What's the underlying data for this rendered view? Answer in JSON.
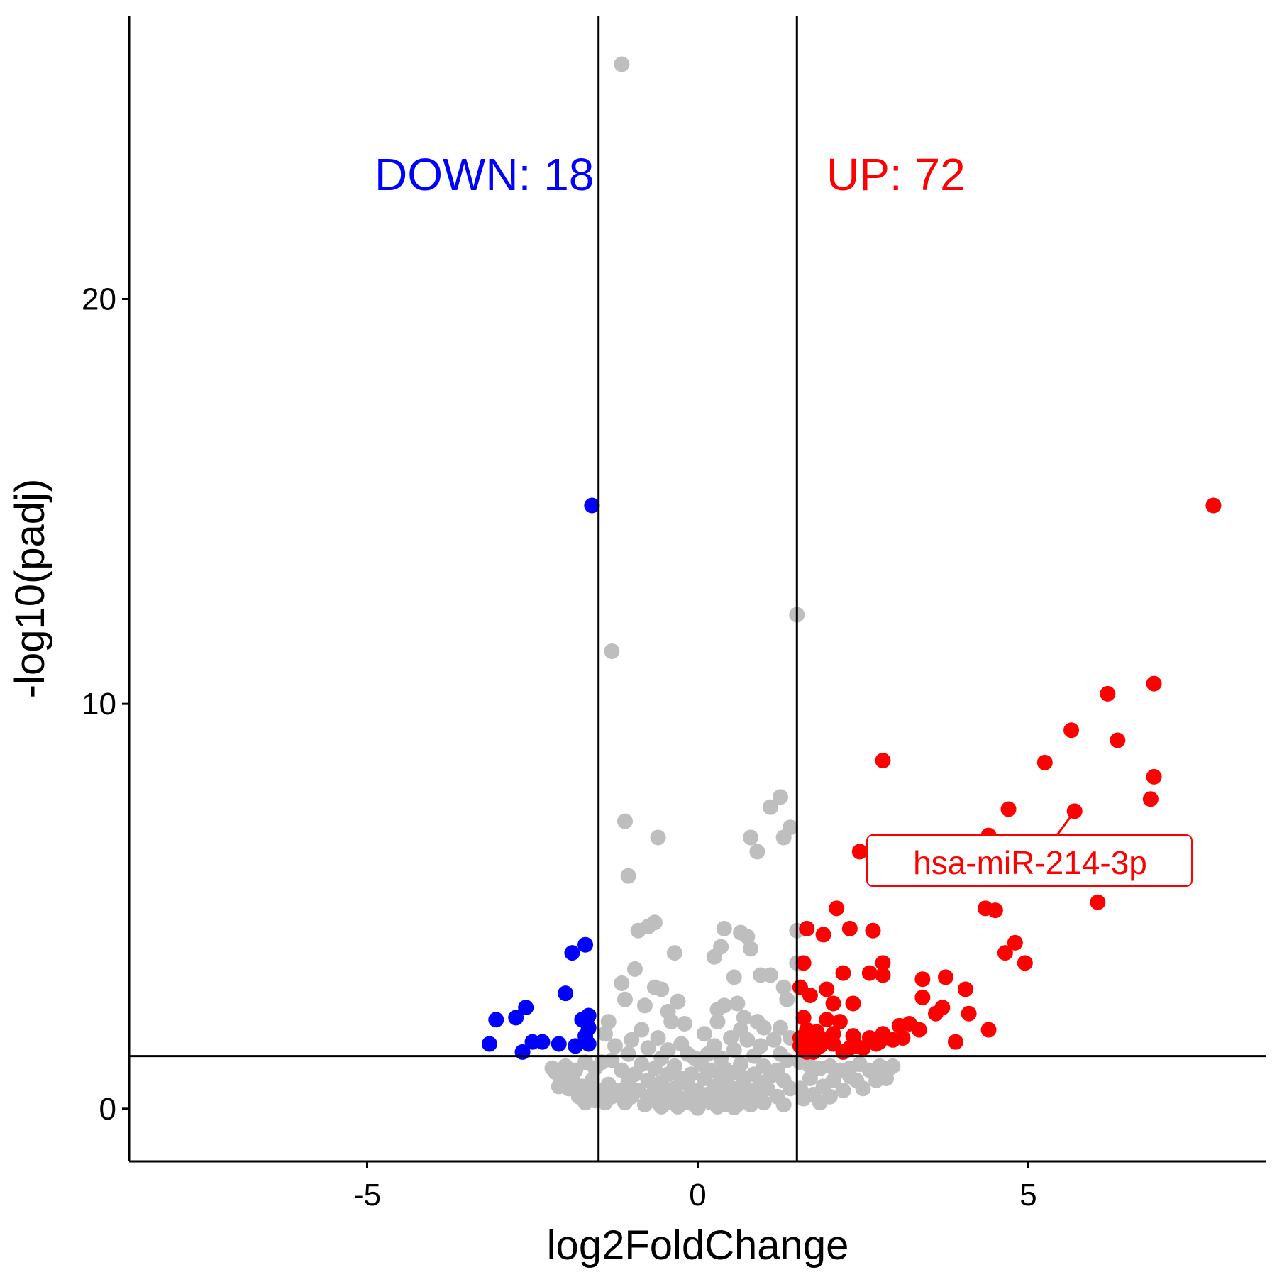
{
  "chart_data": {
    "type": "scatter",
    "title": "",
    "xlabel": "log2FoldChange",
    "ylabel": "-log10(padj)",
    "xlim": [
      -8.6,
      8.6
    ],
    "ylim": [
      -1.3,
      27
    ],
    "xticks": [
      -5,
      0,
      5
    ],
    "xtick_labels": [
      "-5",
      "0",
      "5"
    ],
    "yticks": [
      0,
      10,
      20
    ],
    "ytick_labels": [
      "0",
      "10",
      "20"
    ],
    "grid": false,
    "legend": "none",
    "thresholds": {
      "log2fc": [
        -1.5,
        1.5
      ],
      "neg_log10_padj": 1.3
    },
    "colors": {
      "up": "#FF0000",
      "down": "#0000FF",
      "ns": "#BEBEBE",
      "line": "#000000"
    },
    "annotations": {
      "down_label": "DOWN: 18",
      "up_label": "UP: 72",
      "gene_label": "hsa-miR-214-3p",
      "gene_point": [
        5.7,
        7.35
      ]
    },
    "series": [
      {
        "color": "#0000FF",
        "points": [
          [
            -1.6,
            14.9
          ],
          [
            -1.7,
            4.05
          ],
          [
            -1.9,
            3.85
          ],
          [
            -2.0,
            2.85
          ],
          [
            -1.65,
            2.3
          ],
          [
            -1.75,
            2.2
          ],
          [
            -1.65,
            2.0
          ],
          [
            -1.7,
            1.8
          ],
          [
            -1.65,
            1.6
          ],
          [
            -1.85,
            1.55
          ],
          [
            -2.6,
            2.5
          ],
          [
            -2.75,
            2.25
          ],
          [
            -3.05,
            2.2
          ],
          [
            -3.15,
            1.6
          ],
          [
            -2.5,
            1.65
          ],
          [
            -2.35,
            1.65
          ],
          [
            -2.1,
            1.6
          ],
          [
            -2.65,
            1.4
          ]
        ]
      },
      {
        "color": "#FF0000",
        "points": [
          [
            7.8,
            14.9
          ],
          [
            6.9,
            10.5
          ],
          [
            6.2,
            10.25
          ],
          [
            5.65,
            9.35
          ],
          [
            6.35,
            9.1
          ],
          [
            2.8,
            8.6
          ],
          [
            5.25,
            8.55
          ],
          [
            6.9,
            8.2
          ],
          [
            6.85,
            7.65
          ],
          [
            4.7,
            7.4
          ],
          [
            5.7,
            7.35
          ],
          [
            4.4,
            6.75
          ],
          [
            2.45,
            6.35
          ],
          [
            6.05,
            5.1
          ],
          [
            4.35,
            4.95
          ],
          [
            4.5,
            4.9
          ],
          [
            2.1,
            4.95
          ],
          [
            1.65,
            4.45
          ],
          [
            2.65,
            4.4
          ],
          [
            1.9,
            4.3
          ],
          [
            2.3,
            4.45
          ],
          [
            4.8,
            4.1
          ],
          [
            4.65,
            3.85
          ],
          [
            4.95,
            3.6
          ],
          [
            1.6,
            3.6
          ],
          [
            2.8,
            3.6
          ],
          [
            2.6,
            3.35
          ],
          [
            2.8,
            3.3
          ],
          [
            2.2,
            3.35
          ],
          [
            3.4,
            3.2
          ],
          [
            3.75,
            3.25
          ],
          [
            1.55,
            3.0
          ],
          [
            1.95,
            2.95
          ],
          [
            3.4,
            2.75
          ],
          [
            4.05,
            2.95
          ],
          [
            1.7,
            2.8
          ],
          [
            2.05,
            2.6
          ],
          [
            2.35,
            2.6
          ],
          [
            3.7,
            2.5
          ],
          [
            3.6,
            2.35
          ],
          [
            4.1,
            2.35
          ],
          [
            1.6,
            2.25
          ],
          [
            1.95,
            2.2
          ],
          [
            2.15,
            2.15
          ],
          [
            3.2,
            2.1
          ],
          [
            3.35,
            1.95
          ],
          [
            1.65,
            1.95
          ],
          [
            1.8,
            1.9
          ],
          [
            2.05,
            1.85
          ],
          [
            2.35,
            1.8
          ],
          [
            2.8,
            1.85
          ],
          [
            3.05,
            2.05
          ],
          [
            4.4,
            1.95
          ],
          [
            1.55,
            1.75
          ],
          [
            2.6,
            1.75
          ],
          [
            2.75,
            1.65
          ],
          [
            1.7,
            1.6
          ],
          [
            1.9,
            1.7
          ],
          [
            2.3,
            1.5
          ],
          [
            2.95,
            1.7
          ],
          [
            3.1,
            1.75
          ],
          [
            3.9,
            1.65
          ],
          [
            1.6,
            1.45
          ],
          [
            1.75,
            1.4
          ],
          [
            1.55,
            1.55
          ],
          [
            2.2,
            1.4
          ],
          [
            2.5,
            1.5
          ],
          [
            2.7,
            1.6
          ],
          [
            1.85,
            1.55
          ],
          [
            2.05,
            1.6
          ],
          [
            1.65,
            1.4
          ],
          [
            2.4,
            1.55
          ]
        ]
      },
      {
        "color": "#BEBEBE",
        "points": [
          [
            -1.15,
            25.8
          ],
          [
            1.5,
            12.2
          ],
          [
            -1.3,
            11.3
          ],
          [
            1.25,
            7.7
          ],
          [
            1.1,
            7.45
          ],
          [
            -1.1,
            7.1
          ],
          [
            1.4,
            6.95
          ],
          [
            -0.6,
            6.7
          ],
          [
            0.8,
            6.7
          ],
          [
            1.3,
            6.7
          ],
          [
            0.9,
            6.35
          ],
          [
            -1.05,
            5.75
          ],
          [
            1.5,
            4.4
          ],
          [
            0.4,
            4.45
          ],
          [
            -0.65,
            4.6
          ],
          [
            -0.75,
            4.5
          ],
          [
            -0.9,
            4.4
          ],
          [
            0.65,
            4.35
          ],
          [
            0.75,
            4.25
          ],
          [
            0.8,
            3.95
          ],
          [
            0.35,
            4.0
          ],
          [
            -0.35,
            3.85
          ],
          [
            0.25,
            3.75
          ],
          [
            1.5,
            3.6
          ],
          [
            -0.95,
            3.45
          ],
          [
            0.95,
            3.3
          ],
          [
            0.55,
            3.25
          ],
          [
            1.1,
            3.3
          ],
          [
            -1.15,
            3.1
          ],
          [
            1.3,
            3.0
          ],
          [
            -0.65,
            3.0
          ],
          [
            -0.55,
            2.95
          ],
          [
            -0.3,
            2.65
          ],
          [
            0.3,
            2.45
          ],
          [
            0.4,
            2.55
          ],
          [
            -0.8,
            2.55
          ],
          [
            1.35,
            2.7
          ],
          [
            -1.1,
            2.7
          ],
          [
            0.6,
            2.6
          ],
          [
            -0.45,
            2.4
          ],
          [
            0.7,
            2.25
          ],
          [
            -0.4,
            2.15
          ],
          [
            -0.2,
            2.1
          ],
          [
            0.3,
            2.15
          ],
          [
            0.9,
            2.15
          ],
          [
            1.0,
            2.0
          ],
          [
            1.25,
            2.0
          ],
          [
            -1.35,
            2.15
          ],
          [
            -1.4,
            1.85
          ],
          [
            0.65,
            1.95
          ],
          [
            -0.85,
            1.95
          ],
          [
            -0.6,
            1.75
          ],
          [
            0.1,
            1.85
          ],
          [
            0.5,
            1.75
          ],
          [
            0.75,
            1.7
          ],
          [
            -1.0,
            1.7
          ],
          [
            1.15,
            1.7
          ],
          [
            1.4,
            1.75
          ],
          [
            -0.25,
            1.6
          ],
          [
            0.25,
            1.55
          ],
          [
            -1.25,
            1.55
          ],
          [
            -0.75,
            1.5
          ],
          [
            0.95,
            1.55
          ],
          [
            -0.45,
            1.45
          ],
          [
            0.55,
            1.45
          ],
          [
            -1.05,
            1.35
          ],
          [
            0.15,
            1.35
          ],
          [
            1.25,
            1.35
          ],
          [
            -0.15,
            1.35
          ],
          [
            0.85,
            1.3
          ],
          [
            -0.05,
            1.25
          ],
          [
            -0.55,
            1.25
          ],
          [
            0.35,
            1.25
          ],
          [
            1.35,
            1.2
          ],
          [
            -1.45,
            1.15
          ],
          [
            -1.3,
            1.2
          ],
          [
            0.05,
            1.1
          ],
          [
            -0.85,
            1.1
          ],
          [
            0.65,
            1.1
          ],
          [
            -0.35,
            1.05
          ],
          [
            1.0,
            1.05
          ],
          [
            0.4,
            1.0
          ],
          [
            -0.65,
            1.0
          ],
          [
            0.2,
            0.95
          ],
          [
            -1.15,
            0.95
          ],
          [
            1.2,
            0.95
          ],
          [
            -0.1,
            0.85
          ],
          [
            0.55,
            0.9
          ],
          [
            -0.45,
            0.85
          ],
          [
            0.85,
            0.85
          ],
          [
            -0.95,
            0.85
          ],
          [
            0.1,
            0.75
          ],
          [
            -0.25,
            0.75
          ],
          [
            0.35,
            0.7
          ],
          [
            0.7,
            0.75
          ],
          [
            1.1,
            0.8
          ],
          [
            -0.75,
            0.7
          ],
          [
            -0.55,
            0.65
          ],
          [
            0.45,
            0.6
          ],
          [
            -0.15,
            0.6
          ],
          [
            0.25,
            0.55
          ],
          [
            0.95,
            0.65
          ],
          [
            -1.05,
            0.65
          ],
          [
            1.3,
            0.7
          ],
          [
            -1.35,
            0.6
          ],
          [
            0.0,
            0.45
          ],
          [
            -0.35,
            0.5
          ],
          [
            0.6,
            0.5
          ],
          [
            -0.65,
            0.5
          ],
          [
            0.8,
            0.45
          ],
          [
            -0.9,
            0.45
          ],
          [
            1.05,
            0.5
          ],
          [
            -1.2,
            0.45
          ],
          [
            1.4,
            0.5
          ],
          [
            0.15,
            0.35
          ],
          [
            -0.1,
            0.35
          ],
          [
            0.35,
            0.3
          ],
          [
            -0.45,
            0.35
          ],
          [
            -0.25,
            0.25
          ],
          [
            0.5,
            0.25
          ],
          [
            0.7,
            0.3
          ],
          [
            -0.75,
            0.3
          ],
          [
            0.9,
            0.3
          ],
          [
            -1.0,
            0.3
          ],
          [
            1.2,
            0.3
          ],
          [
            -1.3,
            0.3
          ],
          [
            0.05,
            0.15
          ],
          [
            -0.05,
            0.1
          ],
          [
            0.2,
            0.15
          ],
          [
            -0.2,
            0.15
          ],
          [
            0.4,
            0.1
          ],
          [
            -0.4,
            0.15
          ],
          [
            0.6,
            0.1
          ],
          [
            -0.6,
            0.15
          ],
          [
            0.8,
            0.1
          ],
          [
            -0.8,
            0.1
          ],
          [
            1.0,
            0.15
          ],
          [
            -1.1,
            0.15
          ],
          [
            1.3,
            0.1
          ],
          [
            -1.4,
            0.15
          ],
          [
            0.0,
            0.02
          ],
          [
            0.3,
            0.05
          ],
          [
            -0.3,
            0.05
          ],
          [
            0.55,
            0.03
          ],
          [
            -0.55,
            0.05
          ],
          [
            -1.55,
            1.0
          ],
          [
            -1.7,
            1.15
          ],
          [
            -1.85,
            0.95
          ],
          [
            -2.0,
            1.05
          ],
          [
            -2.15,
            0.9
          ],
          [
            -2.2,
            1.0
          ],
          [
            -2.05,
            0.7
          ],
          [
            -1.9,
            0.75
          ],
          [
            -1.75,
            0.55
          ],
          [
            -1.6,
            0.7
          ],
          [
            -1.95,
            0.5
          ],
          [
            -1.5,
            0.45
          ],
          [
            -1.65,
            0.35
          ],
          [
            -1.8,
            0.3
          ],
          [
            -1.55,
            0.2
          ],
          [
            -2.1,
            0.55
          ],
          [
            -1.45,
            0.3
          ],
          [
            -1.7,
            0.15
          ],
          [
            1.55,
            1.15
          ],
          [
            1.7,
            1.05
          ],
          [
            1.85,
            1.0
          ],
          [
            2.0,
            1.05
          ],
          [
            2.15,
            0.95
          ],
          [
            2.3,
            1.0
          ],
          [
            2.45,
            1.1
          ],
          [
            2.6,
            0.95
          ],
          [
            2.75,
            1.05
          ],
          [
            2.9,
            1.0
          ],
          [
            2.95,
            1.05
          ],
          [
            2.85,
            0.75
          ],
          [
            2.5,
            0.5
          ],
          [
            2.3,
            0.8
          ],
          [
            2.05,
            0.7
          ],
          [
            1.9,
            0.55
          ],
          [
            1.7,
            0.75
          ],
          [
            1.55,
            0.5
          ],
          [
            1.75,
            0.35
          ],
          [
            2.0,
            0.3
          ],
          [
            2.2,
            0.45
          ],
          [
            1.6,
            0.25
          ],
          [
            2.4,
            0.7
          ],
          [
            2.7,
            0.7
          ],
          [
            1.85,
            0.15
          ]
        ]
      }
    ]
  }
}
